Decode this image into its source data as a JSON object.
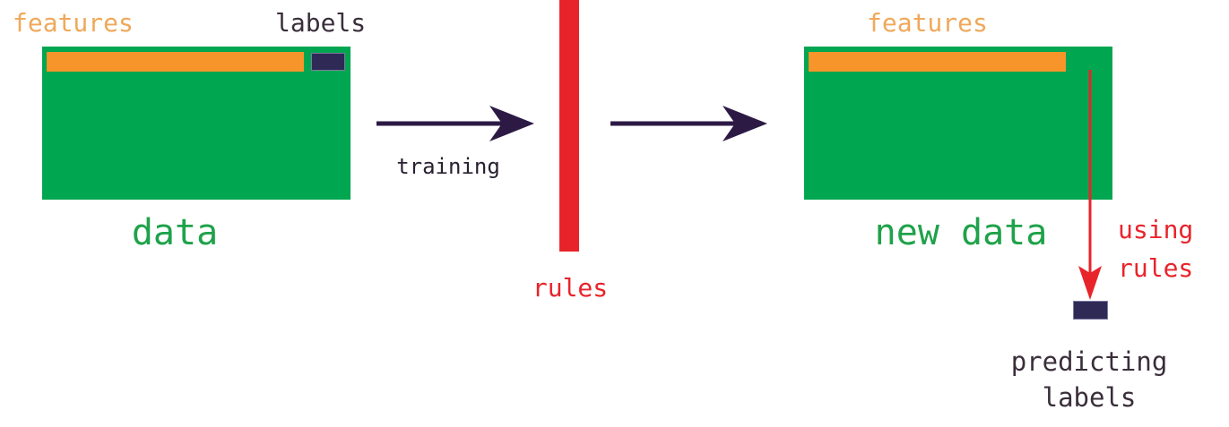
{
  "left": {
    "features_label": "features",
    "labels_label": "labels",
    "data_label": "data"
  },
  "training_label": "training",
  "rules_label": "rules",
  "right": {
    "features_label": "features",
    "new_data_label": "new data",
    "using_rules_line1": "using",
    "using_rules_line2": "rules",
    "predicting_line1": "predicting",
    "predicting_line2": "labels"
  },
  "colors": {
    "data_panel": "#00A650",
    "features_bar": "#F7942A",
    "label_box": "#2E2A55",
    "rules": "#E8242B",
    "arrow": "#2C1A45",
    "green_text": "#1FA24A",
    "orange_text": "#F0A85A"
  }
}
